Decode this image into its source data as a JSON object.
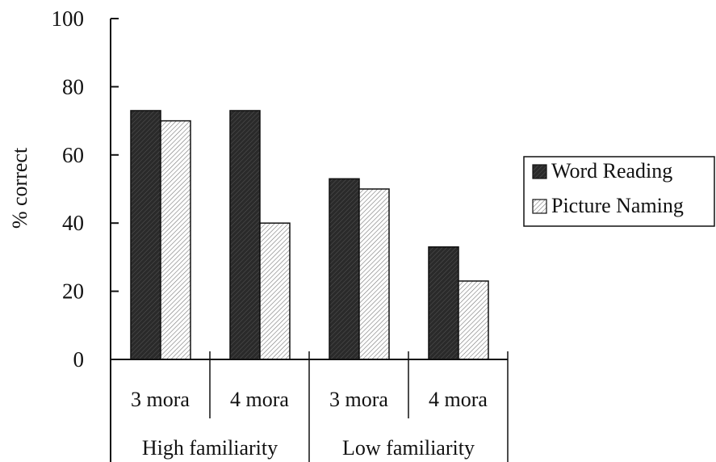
{
  "chart_data": {
    "type": "bar",
    "title": "",
    "xlabel": "",
    "ylabel": "% correct",
    "ylim": [
      0,
      100
    ],
    "yticks": [
      "0",
      "20",
      "40",
      "60",
      "80",
      "100"
    ],
    "categories": [
      "3 mora",
      "4 mora",
      "3 mora",
      "4 mora"
    ],
    "groups": [
      "High familiarity",
      "Low familiarity"
    ],
    "series": [
      {
        "name": "Word Reading",
        "values": [
          73,
          73,
          53,
          33
        ],
        "color": "#222222"
      },
      {
        "name": "Picture Naming",
        "values": [
          70,
          40,
          50,
          23
        ],
        "color": "#e6e6e6"
      }
    ],
    "legend_position": "right",
    "grid": false
  }
}
